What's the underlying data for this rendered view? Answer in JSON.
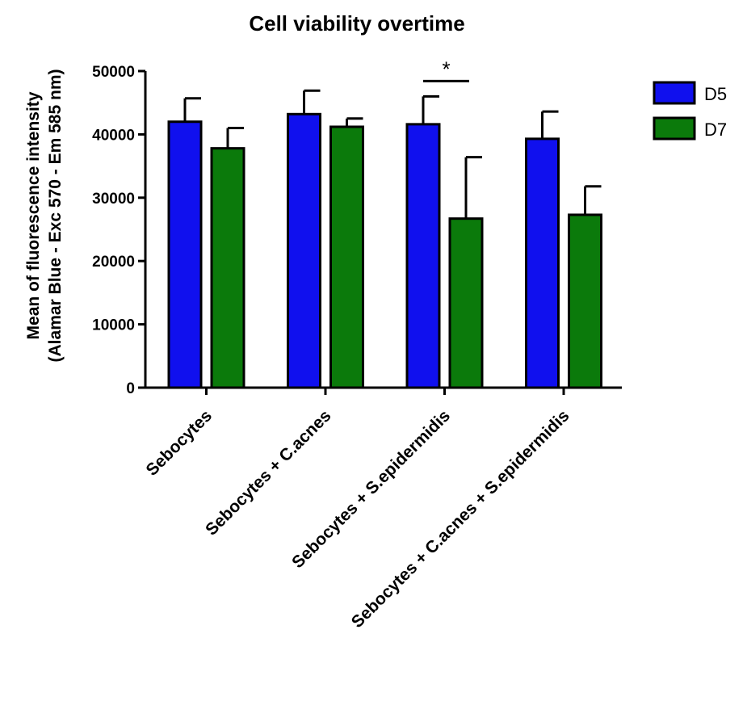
{
  "chart_data": {
    "type": "bar",
    "title": "Cell viability overtime",
    "ylabel_lines": [
      "Mean of fluorescence intensity",
      "(Alamar Blue - Exc 570 - Em 585 nm)"
    ],
    "xlabel": "",
    "categories": [
      "Sebocytes",
      "Sebocytes + C.acnes",
      "Sebocytes + S.epidermidis",
      "Sebocytes + C.acnes + S.epidermidis"
    ],
    "series": [
      {
        "name": "D5",
        "color": "#1010ee",
        "values": [
          42000,
          43200,
          41600,
          39300
        ],
        "errors": [
          3700,
          3700,
          4400,
          4300
        ]
      },
      {
        "name": "D7",
        "color": "#0b7a0b",
        "values": [
          37800,
          41200,
          26700,
          27300
        ],
        "errors": [
          3200,
          1300,
          9700,
          4500
        ]
      }
    ],
    "ylim": [
      0,
      50000
    ],
    "yticks": [
      "0",
      "10000",
      "20000",
      "30000",
      "40000",
      "50000"
    ],
    "significance": [
      {
        "category_index": 2,
        "label": "*"
      }
    ],
    "legend_position": "top-right",
    "grid": false
  }
}
